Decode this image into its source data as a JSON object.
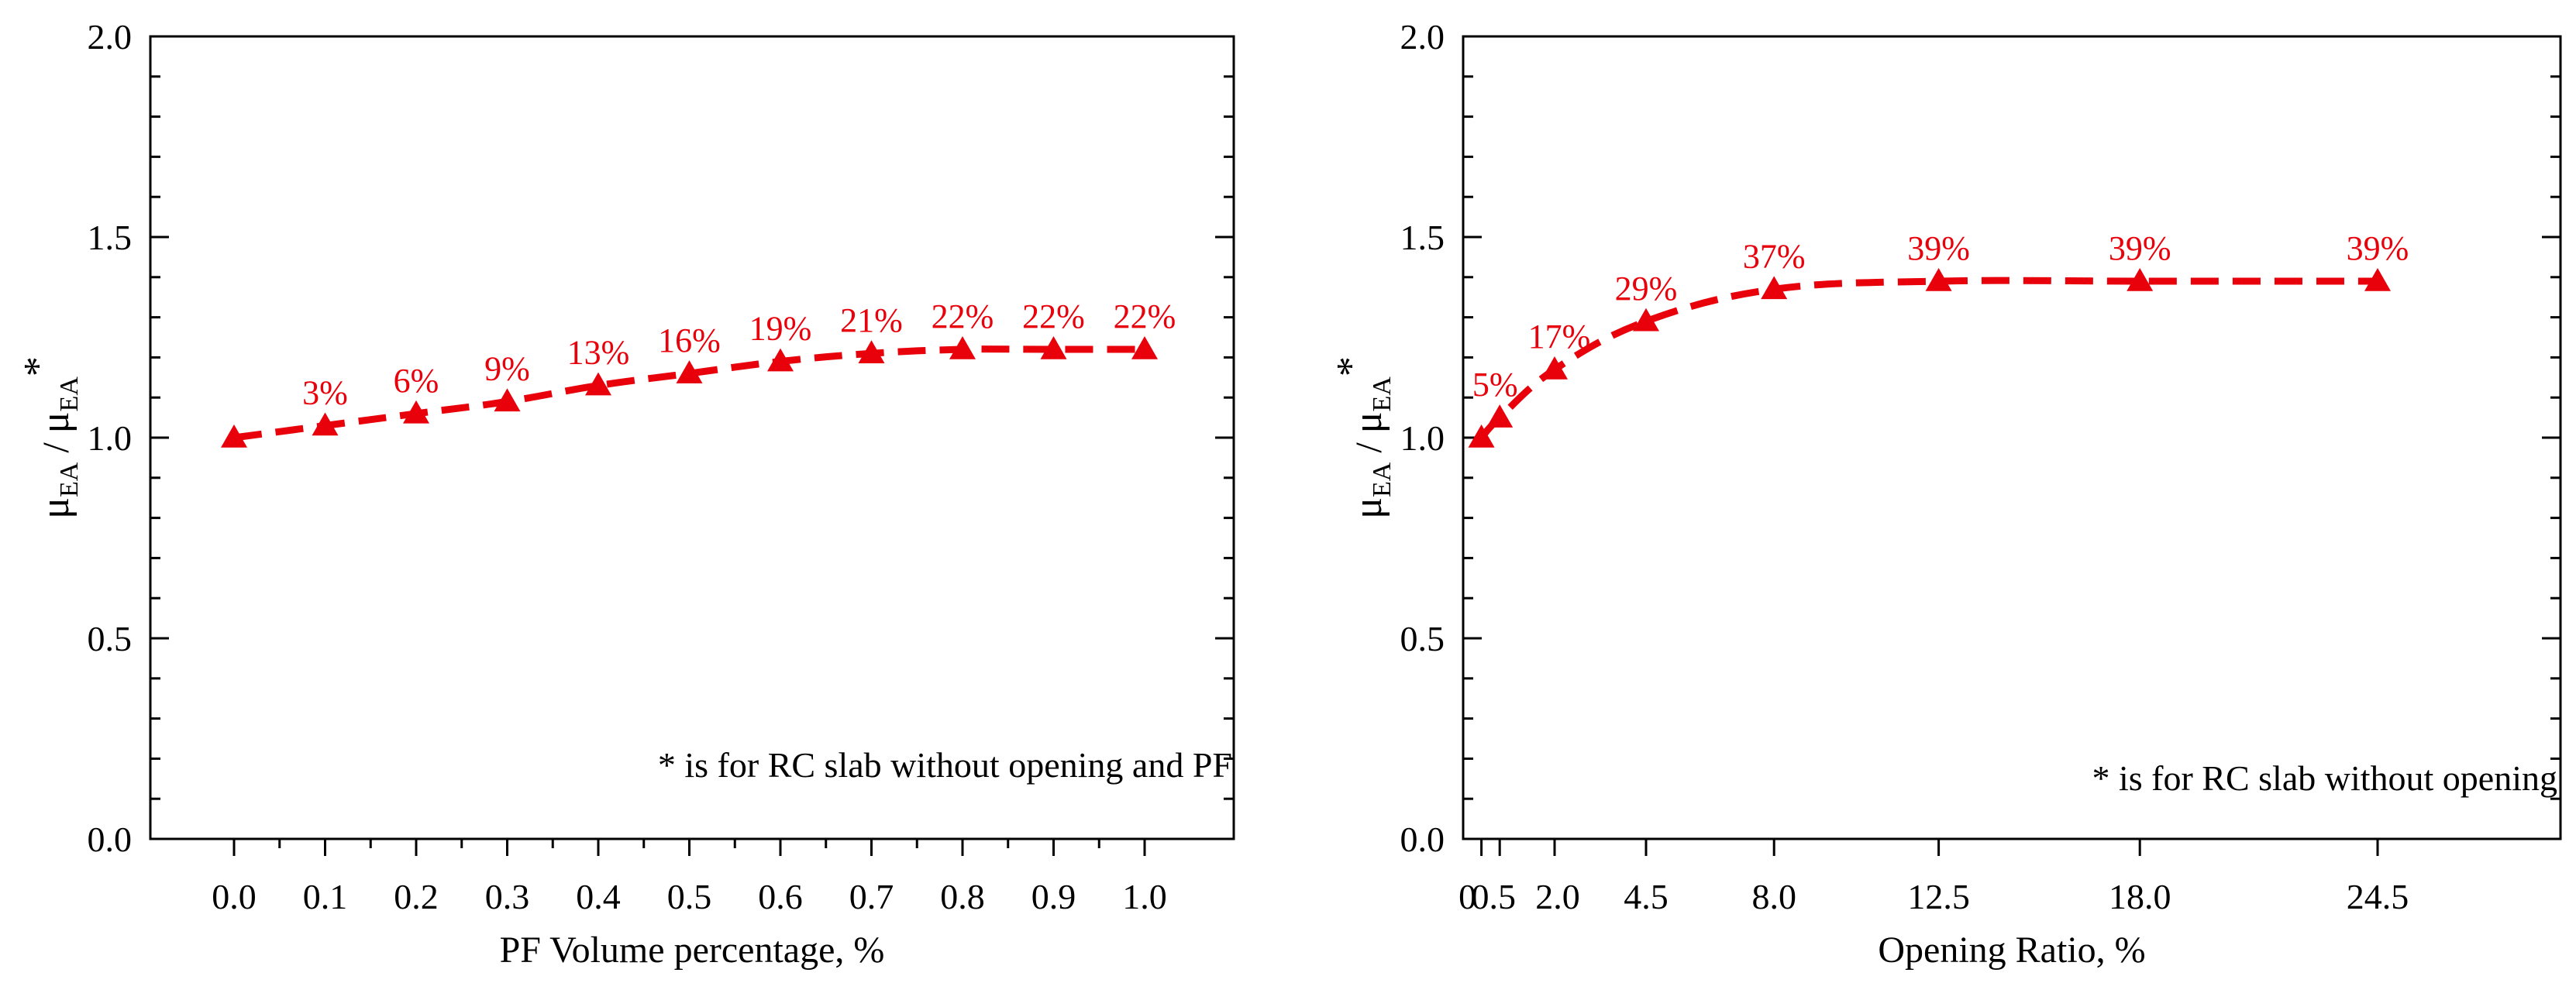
{
  "chart_data": [
    {
      "type": "line",
      "x_scale": "categorical",
      "categories": [
        "0.0",
        "0.1",
        "0.2",
        "0.3",
        "0.4",
        "0.5",
        "0.6",
        "0.7",
        "0.8",
        "0.9",
        "1.0"
      ],
      "x": [
        0.0,
        0.1,
        0.2,
        0.3,
        0.4,
        0.5,
        0.6,
        0.7,
        0.8,
        0.9,
        1.0
      ],
      "series": [
        {
          "name": "μEA / μEA*",
          "color": "#e8000b",
          "marker": "triangle",
          "line_style": "dashed",
          "values": [
            1.0,
            1.03,
            1.06,
            1.09,
            1.13,
            1.16,
            1.19,
            1.21,
            1.22,
            1.22,
            1.22
          ],
          "labels": [
            "",
            "3%",
            "6%",
            "9%",
            "13%",
            "16%",
            "19%",
            "21%",
            "22%",
            "22%",
            "22%"
          ]
        }
      ],
      "xlabel": "PF Volume percentage, %",
      "ylabel_main": "μ",
      "ylabel_sub": "EA",
      "ylabel_sep": " / ",
      "ylabel_star": "*",
      "ylim": [
        0.0,
        2.0
      ],
      "yticks": [
        "0.0",
        "0.5",
        "1.0",
        "1.5",
        "2.0"
      ],
      "annotation": "* is for RC slab without opening and PF"
    },
    {
      "type": "line",
      "x_scale": "linear",
      "categories": [
        "0",
        "0.5",
        "2.0",
        "4.5",
        "8.0",
        "12.5",
        "18.0",
        "24.5"
      ],
      "x": [
        0,
        0.5,
        2.0,
        4.5,
        8.0,
        12.5,
        18.0,
        24.5
      ],
      "tick_labels": [
        "0",
        "0.5",
        "2.0",
        "4.5",
        "8.0",
        "12.5",
        "18.0",
        "24.5"
      ],
      "series": [
        {
          "name": "μEA / μEA*",
          "color": "#e8000b",
          "marker": "triangle",
          "line_style": "dashed",
          "values": [
            1.0,
            1.05,
            1.17,
            1.29,
            1.37,
            1.39,
            1.39,
            1.39
          ],
          "labels": [
            "",
            "5%",
            "17%",
            "29%",
            "37%",
            "39%",
            "39%",
            "39%"
          ]
        }
      ],
      "xlabel": "Opening Ratio, %",
      "ylabel_main": "μ",
      "ylabel_sub": "EA",
      "ylabel_sep": " / ",
      "ylabel_star": "*",
      "xlim": [
        -0.5,
        29.5
      ],
      "ylim": [
        0.0,
        2.0
      ],
      "yticks": [
        "0.0",
        "0.5",
        "1.0",
        "1.5",
        "2.0"
      ],
      "annotation": "* is for RC slab without opening"
    }
  ]
}
